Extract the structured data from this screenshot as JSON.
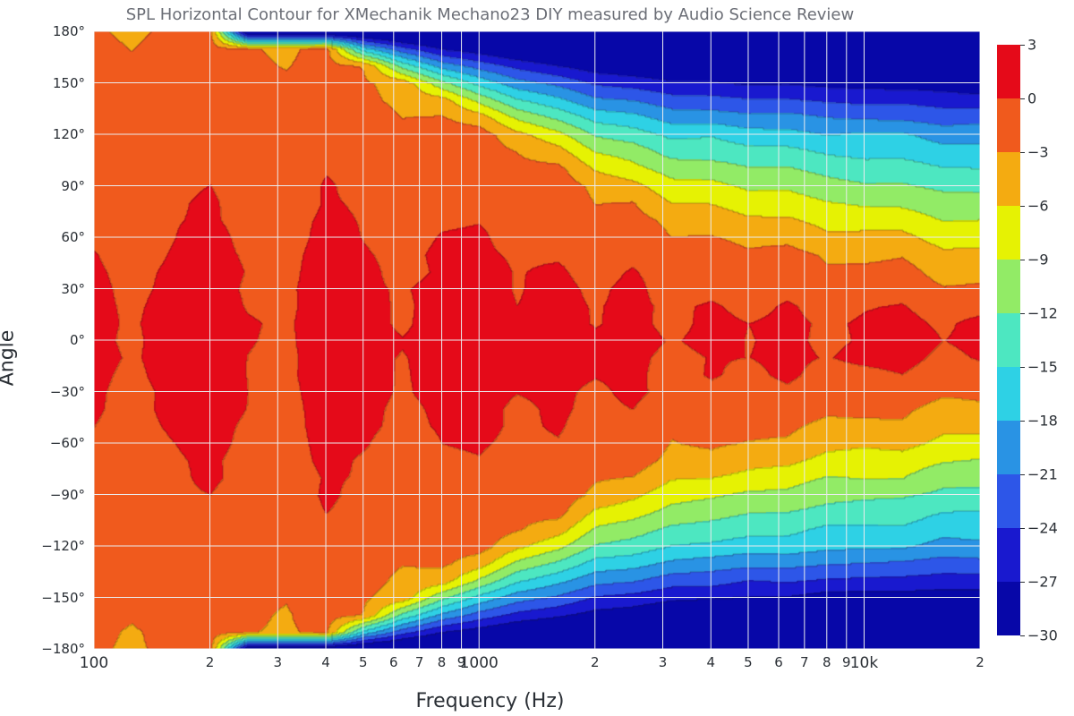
{
  "title": "SPL Horizontal Contour for XMechanik Mechano23 DIY measured by Audio Science Review",
  "xlabel": "Frequency (Hz)",
  "ylabel": "Angle",
  "background_color": "#ffffff",
  "grid_color": "#eaecef",
  "text_color": "#2a2f35",
  "title_color": "#6b6e76",
  "label_fontsize": 22,
  "title_fontsize": 18,
  "tick_fontsize": 15,
  "chart": {
    "type": "contour",
    "x_scale": "log",
    "xlim": [
      100,
      20000
    ],
    "ylim": [
      -180,
      180
    ],
    "x_major_ticks": [
      {
        "value": 100,
        "label": "100"
      },
      {
        "value": 1000,
        "label": "1000"
      },
      {
        "value": 10000,
        "label": "10k"
      }
    ],
    "x_minor_ticks": [
      {
        "value": 200,
        "label": "2"
      },
      {
        "value": 300,
        "label": "3"
      },
      {
        "value": 400,
        "label": "4"
      },
      {
        "value": 500,
        "label": "5"
      },
      {
        "value": 600,
        "label": "6"
      },
      {
        "value": 700,
        "label": "7"
      },
      {
        "value": 800,
        "label": "8"
      },
      {
        "value": 900,
        "label": "9"
      },
      {
        "value": 2000,
        "label": "2"
      },
      {
        "value": 3000,
        "label": "3"
      },
      {
        "value": 4000,
        "label": "4"
      },
      {
        "value": 5000,
        "label": "5"
      },
      {
        "value": 6000,
        "label": "6"
      },
      {
        "value": 7000,
        "label": "7"
      },
      {
        "value": 8000,
        "label": "8"
      },
      {
        "value": 9000,
        "label": "9"
      },
      {
        "value": 20000,
        "label": "2"
      }
    ],
    "y_ticks": [
      -180,
      -150,
      -120,
      -90,
      -60,
      -30,
      0,
      30,
      60,
      90,
      120,
      150,
      180
    ],
    "y_tick_suffix": "°",
    "z_levels": [
      -30,
      -27,
      -24,
      -21,
      -18,
      -15,
      -12,
      -9,
      -6,
      -3,
      0,
      3
    ],
    "z_colors": [
      "#0707a8",
      "#1919cf",
      "#2d56e8",
      "#2993e4",
      "#2ed1e5",
      "#4de7c1",
      "#92eb66",
      "#e6f203",
      "#f4ab11",
      "#f05a1d",
      "#e50a19"
    ],
    "contour_line_color": "#202020",
    "contour_line_width": 0.6,
    "data": {
      "freqs": [
        100,
        125,
        160,
        200,
        250,
        315,
        400,
        500,
        630,
        800,
        1000,
        1250,
        1600,
        2000,
        2500,
        3150,
        4000,
        5000,
        6300,
        8000,
        10000,
        12500,
        16000,
        20000
      ],
      "angles": [
        -180,
        -170,
        -160,
        -150,
        -140,
        -130,
        -120,
        -110,
        -100,
        -90,
        -80,
        -70,
        -60,
        -50,
        -40,
        -30,
        -20,
        -10,
        0,
        10,
        20,
        30,
        40,
        50,
        60,
        70,
        80,
        90,
        100,
        110,
        120,
        130,
        140,
        150,
        160,
        170,
        180
      ],
      "center_noise": [
        0.4,
        -0.2,
        0.6,
        1.1,
        0.1,
        -0.3,
        1.3,
        0.7,
        -0.1,
        0.9,
        1.4,
        0.3,
        1.0,
        0.2,
        1.2,
        -0.4,
        0.5,
        0.0,
        0.8,
        -0.2,
        0.6,
        1.5,
        0.1,
        1.1
      ],
      "beamwidth": [
        360,
        360,
        360,
        360,
        355,
        350,
        340,
        320,
        300,
        275,
        250,
        225,
        200,
        170,
        150,
        135,
        125,
        115,
        105,
        95,
        85,
        75,
        65,
        55
      ],
      "back_drop": [
        0,
        0,
        0,
        0,
        0,
        0,
        0.5,
        1.0,
        2.0,
        3.5,
        4.0,
        4.2,
        4.5,
        5.0,
        5.5,
        6.0,
        6.5,
        7.0,
        7.0,
        7.0,
        7.0,
        7.0,
        7.0,
        7.0
      ],
      "falloff_floor": -32,
      "ripple_amp": 0.8
    }
  },
  "colorbar": {
    "vmin": -30,
    "vmax": 3,
    "ticks": [
      3,
      0,
      -3,
      -6,
      -9,
      -12,
      -15,
      -18,
      -21,
      -24,
      -27,
      -30
    ],
    "tick_labels": [
      "3",
      "0",
      "−3",
      "−6",
      "−9",
      "−12",
      "−15",
      "−18",
      "−21",
      "−24",
      "−27",
      "−30"
    ],
    "minus_sign": "−"
  }
}
